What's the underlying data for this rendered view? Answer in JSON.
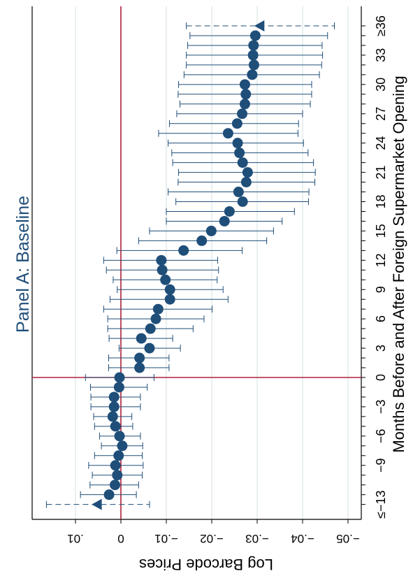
{
  "chart_data": {
    "type": "scatter",
    "title": "Panel A: Baseline",
    "xlabel": "Months Before and After Foreign Supermarket Opening",
    "ylabel": "Log Barcode Prices",
    "orientation": "rotated-90-clockwise",
    "xlim": [
      -13,
      36
    ],
    "ylim": [
      -0.05,
      0.01
    ],
    "x_ticks": [
      -13,
      -12,
      -11,
      -10,
      -9,
      -8,
      -7,
      -6,
      -5,
      -4,
      -3,
      -2,
      -1,
      0,
      1,
      2,
      3,
      4,
      5,
      6,
      7,
      8,
      9,
      10,
      11,
      12,
      13,
      14,
      15,
      16,
      17,
      18,
      19,
      20,
      21,
      22,
      23,
      24,
      25,
      26,
      27,
      28,
      29,
      30,
      31,
      32,
      33,
      34,
      35,
      36
    ],
    "x_tick_labels": [
      {
        "x": -13,
        "label": "≤−13"
      },
      {
        "x": -9,
        "label": "−9"
      },
      {
        "x": -6,
        "label": "−6"
      },
      {
        "x": -3,
        "label": "−3"
      },
      {
        "x": 0,
        "label": "0"
      },
      {
        "x": 3,
        "label": "3"
      },
      {
        "x": 6,
        "label": "6"
      },
      {
        "x": 9,
        "label": "9"
      },
      {
        "x": 12,
        "label": "12"
      },
      {
        "x": 15,
        "label": "15"
      },
      {
        "x": 18,
        "label": "18"
      },
      {
        "x": 21,
        "label": "21"
      },
      {
        "x": 24,
        "label": "24"
      },
      {
        "x": 27,
        "label": "27"
      },
      {
        "x": 30,
        "label": "30"
      },
      {
        "x": 33,
        "label": "33"
      },
      {
        "x": 36,
        "label": "≥36"
      }
    ],
    "y_ticks": [
      0.01,
      0,
      -0.01,
      -0.02,
      -0.03,
      -0.04,
      -0.05
    ],
    "y_tick_labels": [
      ".01",
      "0",
      "−.01",
      "−.02",
      "−.03",
      "−.04",
      "−.05"
    ],
    "grid": true,
    "reference_lines": {
      "x": 0,
      "y": 0,
      "color": "#b0213b"
    },
    "colors": {
      "marker": "#1f4e79",
      "ci": "#1f4e79",
      "reference": "#b0213b",
      "grid": "#dce6e6"
    },
    "series": [
      {
        "x": [
          -13,
          -12,
          -11,
          -10,
          -9,
          -8,
          -7,
          -6,
          -5,
          -4,
          -3,
          -2,
          -1,
          0,
          1,
          2,
          3,
          4,
          5,
          6,
          7,
          8,
          9,
          10,
          11,
          12,
          13,
          14,
          15,
          16,
          17,
          18,
          19,
          20,
          21,
          22,
          23,
          24,
          25,
          26,
          27,
          28,
          29,
          30,
          31,
          32,
          33,
          34,
          35,
          36
        ],
        "y": [
          0.0052,
          0.0026,
          0.0013,
          0.0008,
          0.0012,
          0.0005,
          -0.0003,
          0.0003,
          0.0012,
          0.0018,
          0.0015,
          0.0015,
          0.0004,
          0.0003,
          -0.0041,
          -0.0041,
          -0.0063,
          -0.0045,
          -0.0065,
          -0.0077,
          -0.0082,
          -0.0108,
          -0.0108,
          -0.0098,
          -0.0091,
          -0.0089,
          -0.0138,
          -0.0178,
          -0.0199,
          -0.0228,
          -0.0239,
          -0.0268,
          -0.0259,
          -0.0276,
          -0.0279,
          -0.0268,
          -0.0261,
          -0.0257,
          -0.0236,
          -0.0256,
          -0.0267,
          -0.0273,
          -0.0275,
          -0.0273,
          -0.0289,
          -0.0293,
          -0.0291,
          -0.0292,
          -0.0296,
          -0.0306
        ],
        "ci_low": [
          -0.0063,
          -0.0034,
          -0.0039,
          -0.0047,
          -0.0049,
          -0.0047,
          -0.0048,
          -0.0043,
          -0.0026,
          -0.0024,
          -0.0043,
          -0.0043,
          -0.0058,
          -0.0073,
          -0.0106,
          -0.0106,
          -0.0131,
          -0.0114,
          -0.0159,
          -0.0183,
          -0.0201,
          -0.0236,
          -0.0225,
          -0.0212,
          -0.0215,
          -0.0213,
          -0.0267,
          -0.0321,
          -0.0336,
          -0.0355,
          -0.0382,
          -0.0413,
          -0.0414,
          -0.0427,
          -0.0428,
          -0.0424,
          -0.0412,
          -0.0402,
          -0.039,
          -0.0391,
          -0.04,
          -0.0417,
          -0.042,
          -0.042,
          -0.0437,
          -0.0442,
          -0.0444,
          -0.0443,
          -0.0455,
          -0.047
        ],
        "ci_high": [
          0.0164,
          0.0089,
          0.0068,
          0.0063,
          0.0071,
          0.0058,
          0.0043,
          0.0047,
          0.0058,
          0.006,
          0.0066,
          0.0066,
          0.0067,
          0.0078,
          0.0027,
          0.0027,
          0.0004,
          0.0026,
          0.0029,
          0.0029,
          0.0038,
          0.0024,
          0.0008,
          0.0017,
          0.0032,
          0.0038,
          0.0009,
          -0.0039,
          -0.0063,
          -0.01,
          -0.01,
          -0.0121,
          -0.0104,
          -0.0126,
          -0.0127,
          -0.0114,
          -0.0112,
          -0.0104,
          -0.0083,
          -0.0107,
          -0.0123,
          -0.013,
          -0.0126,
          -0.0127,
          -0.0139,
          -0.0144,
          -0.0144,
          -0.0147,
          -0.0152,
          -0.0144
        ],
        "endpoint_markers": "triangle",
        "endpoint_ci_style": "dashed"
      }
    ]
  }
}
